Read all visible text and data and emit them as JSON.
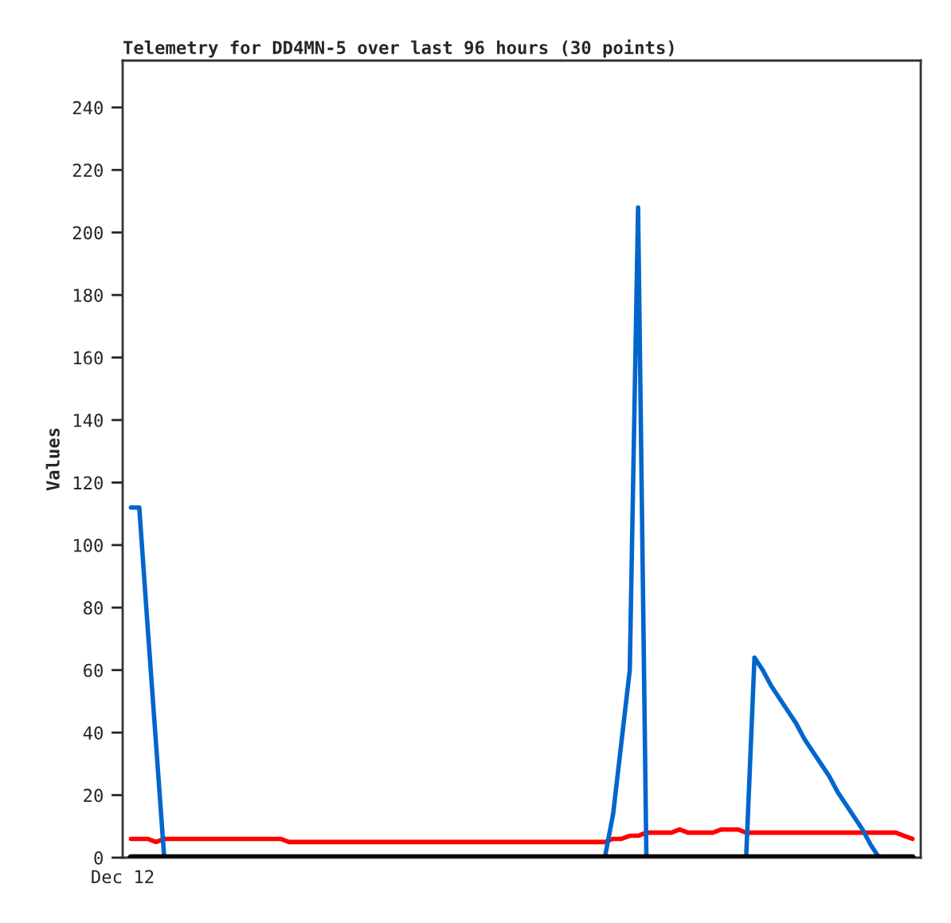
{
  "chart_data": {
    "type": "line",
    "title": "Telemetry for DD4MN-5 over last 96 hours (30 points)",
    "ylabel": "Values",
    "annotations": [
      "Dec 12"
    ],
    "categories": [
      null,
      null,
      null,
      null,
      null,
      null,
      null,
      null,
      null,
      null,
      null,
      null,
      null,
      null,
      null,
      null,
      null,
      null,
      null,
      null,
      null,
      null,
      null,
      null,
      null,
      null,
      null,
      null,
      null,
      null,
      null,
      null,
      null,
      null,
      null,
      null,
      null,
      null,
      null,
      null,
      null,
      null,
      null,
      null,
      null,
      null,
      null,
      null,
      null,
      null,
      null,
      null,
      null,
      null,
      null,
      null,
      null,
      null,
      null,
      null,
      null,
      null,
      null,
      null,
      null,
      null,
      null,
      null,
      null,
      null,
      null,
      null,
      null,
      null,
      null,
      null,
      null,
      null,
      null,
      null,
      null,
      null,
      null,
      null,
      null,
      null,
      null,
      null,
      null,
      null,
      null,
      null,
      null,
      null,
      null,
      null,
      null
    ],
    "ylim": [
      0,
      255
    ],
    "yticks": [
      0,
      20,
      40,
      60,
      80,
      100,
      120,
      140,
      160,
      180,
      200,
      220,
      240
    ],
    "tick_labels": "y",
    "series": [
      {
        "color": "#000000",
        "values": [
          null,
          0,
          0,
          0,
          0,
          0,
          0,
          0,
          0,
          0,
          0,
          0,
          0,
          0,
          0,
          0,
          0,
          0,
          0,
          0,
          0,
          0,
          0,
          0,
          0,
          0,
          0,
          0,
          0,
          0,
          0,
          0,
          0,
          0,
          0,
          0,
          0,
          0,
          0,
          0,
          0,
          0,
          0,
          0,
          0,
          0,
          0,
          0,
          0,
          0,
          0,
          0,
          0,
          0,
          0,
          0,
          0,
          0,
          0,
          0,
          0,
          0,
          0,
          0,
          0,
          0,
          0,
          0,
          0,
          0,
          0,
          0,
          0,
          0,
          0,
          0,
          0,
          0,
          0,
          0,
          0,
          0,
          0,
          0,
          0,
          0,
          0,
          0,
          0,
          0,
          0,
          0,
          0,
          0,
          0,
          0,
          null
        ]
      },
      {
        "color": "#ff0000",
        "values": [
          null,
          6,
          6,
          6,
          5,
          6,
          6,
          6,
          6,
          6,
          6,
          6,
          6,
          6,
          6,
          6,
          6,
          6,
          6,
          6,
          5,
          5,
          5,
          5,
          5,
          5,
          5,
          5,
          5,
          5,
          5,
          5,
          5,
          5,
          5,
          5,
          5,
          5,
          5,
          5,
          5,
          5,
          5,
          5,
          5,
          5,
          5,
          5,
          5,
          5,
          5,
          5,
          5,
          5,
          5,
          5,
          5,
          5,
          5,
          6,
          6,
          7,
          7,
          8,
          8,
          8,
          8,
          9,
          8,
          8,
          8,
          8,
          9,
          9,
          9,
          8,
          8,
          8,
          8,
          8,
          8,
          8,
          8,
          8,
          8,
          8,
          8,
          8,
          8,
          8,
          8,
          8,
          8,
          8,
          7,
          6,
          null
        ]
      },
      {
        "color": "#0066cc",
        "values": [
          null,
          112,
          112,
          74,
          37,
          0,
          null,
          null,
          null,
          null,
          null,
          null,
          null,
          null,
          null,
          null,
          null,
          null,
          null,
          null,
          null,
          null,
          null,
          null,
          null,
          null,
          null,
          null,
          null,
          null,
          null,
          null,
          null,
          null,
          null,
          null,
          null,
          null,
          null,
          null,
          null,
          null,
          null,
          null,
          null,
          null,
          null,
          null,
          null,
          null,
          null,
          null,
          null,
          null,
          null,
          null,
          null,
          null,
          0,
          14,
          37,
          60,
          208,
          0,
          null,
          null,
          null,
          null,
          null,
          null,
          null,
          null,
          null,
          null,
          null,
          0,
          64,
          60,
          55,
          51,
          47,
          43,
          38,
          34,
          30,
          26,
          21,
          17,
          13,
          9,
          4,
          0,
          null,
          null,
          null,
          null,
          null
        ]
      }
    ]
  }
}
